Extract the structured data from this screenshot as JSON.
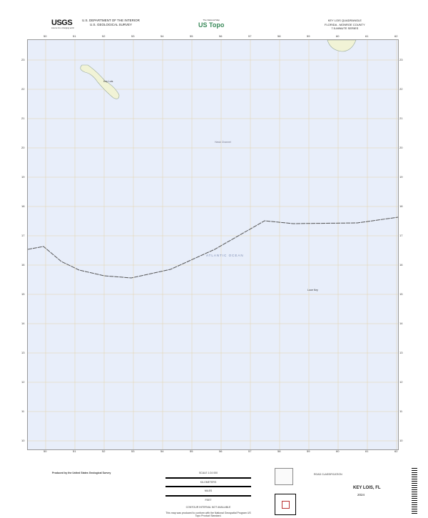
{
  "header": {
    "logo": "USGS",
    "logo_tagline": "science for a changing world",
    "agency_line1": "U.S. DEPARTMENT OF THE INTERIOR",
    "agency_line2": "U.S. GEOLOGICAL SURVEY",
    "topo_tagline": "The National Map",
    "topo_brand": "US Topo",
    "quad_title": "KEY LOIS QUADRANGLE",
    "quad_state": "FLORIDA - MONROE COUNTY",
    "quad_series": "7.5-MINUTE SERIES"
  },
  "map": {
    "colors": {
      "water": "#e8eefa",
      "grid": "#e3d2a8",
      "boundary": "#555555",
      "land": "#f1f3d6"
    },
    "top_ticks": [
      "50",
      "51",
      "52",
      "53",
      "54",
      "55",
      "56",
      "57",
      "58",
      "59",
      "60",
      "61",
      "62"
    ],
    "bottom_ticks": [
      "50",
      "51",
      "52",
      "53",
      "54",
      "55",
      "56",
      "57",
      "58",
      "59",
      "60",
      "61",
      "62"
    ],
    "side_ticks": [
      "23",
      "22",
      "21",
      "20",
      "19",
      "18",
      "17",
      "16",
      "15",
      "14",
      "13",
      "12",
      "11",
      "10"
    ],
    "labels": {
      "island": "Key Lois",
      "channel": "Hawk Channel",
      "ocean": "ATLANTIC OCEAN",
      "key": "Looe Key"
    }
  },
  "footer": {
    "producer": "Produced by the United States Geological Survey",
    "scale": "SCALE 1:24 000",
    "units": [
      "KILOMETERS",
      "METERS",
      "MILES",
      "FEET"
    ],
    "contour_note": "CONTOUR INTERVAL NOT AVAILABLE",
    "standard_note": "This map was produced to conform with the National Geospatial Program US Topo Product Standard.",
    "road_legend": "ROAD CLASSIFICATION",
    "map_name": "KEY LOIS, FL",
    "year": "2024"
  }
}
